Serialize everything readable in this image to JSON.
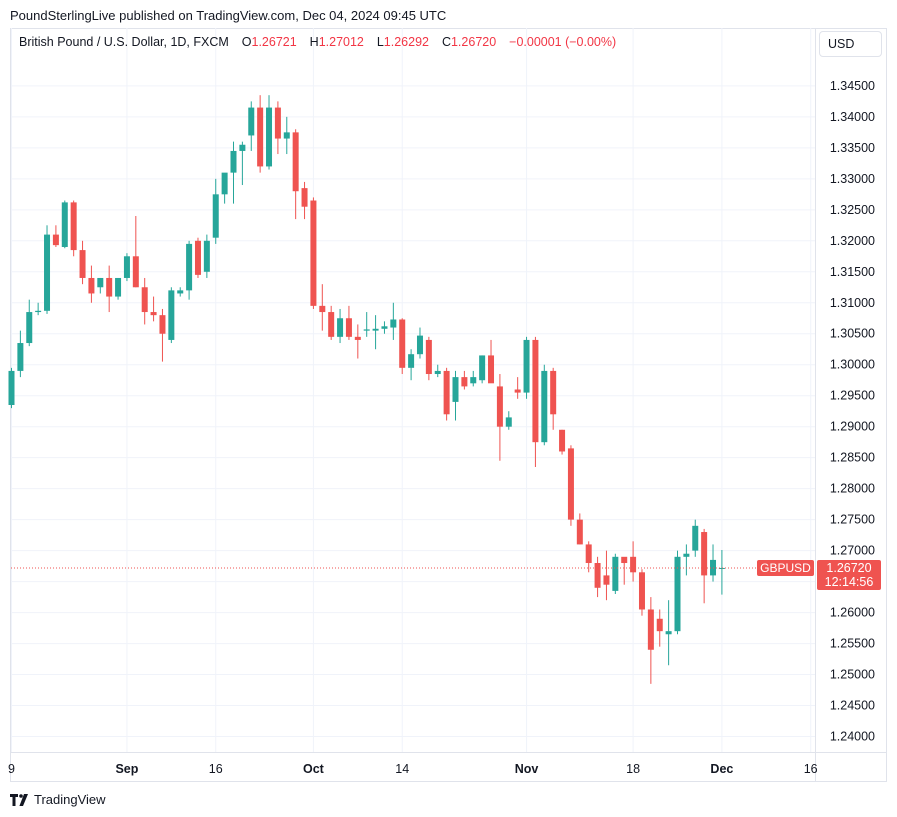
{
  "caption": "PoundSterlingLive published on TradingView.com, Dec 04, 2024 09:45 UTC",
  "legend": {
    "symbol": "British Pound / U.S. Dollar, 1D, FXCM",
    "o_label": "O",
    "o_value": "1.26721",
    "h_label": "H",
    "h_value": "1.27012",
    "l_label": "L",
    "l_value": "1.26292",
    "c_label": "C",
    "c_value": "1.26720",
    "change": "−0.00001 (−0.00%)"
  },
  "currency_button": "USD",
  "price_tag": {
    "symbol": "GBPUSD",
    "price": "1.26720",
    "countdown": "12:14:56"
  },
  "footer": {
    "brand": "TradingView"
  },
  "colors": {
    "up": "#26a69a",
    "down": "#ef5350",
    "grid": "#f0f3fa",
    "tag": "#ef5350"
  },
  "chart_data": {
    "type": "candlestick",
    "ylim": [
      1.2375,
      1.3495
    ],
    "y_ticks": [
      "1.24000",
      "1.24500",
      "1.25000",
      "1.25500",
      "1.26000",
      "1.26500",
      "1.27000",
      "1.27500",
      "1.28000",
      "1.28500",
      "1.29000",
      "1.29500",
      "1.30000",
      "1.30500",
      "1.31000",
      "1.31500",
      "1.32000",
      "1.32500",
      "1.33000",
      "1.33500",
      "1.34000",
      "1.34500"
    ],
    "x_ticks": [
      {
        "label": "9",
        "index": 0
      },
      {
        "label": "Sep",
        "index": 13
      },
      {
        "label": "16",
        "index": 23
      },
      {
        "label": "Oct",
        "index": 34
      },
      {
        "label": "14",
        "index": 44
      },
      {
        "label": "Nov",
        "index": 58
      },
      {
        "label": "18",
        "index": 70
      },
      {
        "label": "Dec",
        "index": 80
      },
      {
        "label": "16",
        "index": 90
      }
    ],
    "last_price": 1.2672,
    "candles": [
      {
        "o": 1.2935,
        "h": 1.2995,
        "l": 1.293,
        "c": 1.299
      },
      {
        "o": 1.299,
        "h": 1.3055,
        "l": 1.298,
        "c": 1.3035
      },
      {
        "o": 1.3035,
        "h": 1.3105,
        "l": 1.303,
        "c": 1.3085
      },
      {
        "o": 1.3085,
        "h": 1.31,
        "l": 1.308,
        "c": 1.3087
      },
      {
        "o": 1.3087,
        "h": 1.3225,
        "l": 1.3082,
        "c": 1.321
      },
      {
        "o": 1.321,
        "h": 1.3225,
        "l": 1.319,
        "c": 1.3193
      },
      {
        "o": 1.319,
        "h": 1.3265,
        "l": 1.3188,
        "c": 1.3262
      },
      {
        "o": 1.3262,
        "h": 1.3265,
        "l": 1.3175,
        "c": 1.3185
      },
      {
        "o": 1.3185,
        "h": 1.32,
        "l": 1.313,
        "c": 1.314
      },
      {
        "o": 1.314,
        "h": 1.316,
        "l": 1.31,
        "c": 1.3115
      },
      {
        "o": 1.3125,
        "h": 1.314,
        "l": 1.3115,
        "c": 1.314
      },
      {
        "o": 1.314,
        "h": 1.316,
        "l": 1.3085,
        "c": 1.311
      },
      {
        "o": 1.311,
        "h": 1.314,
        "l": 1.3105,
        "c": 1.314
      },
      {
        "o": 1.314,
        "h": 1.318,
        "l": 1.3135,
        "c": 1.3175
      },
      {
        "o": 1.3175,
        "h": 1.324,
        "l": 1.3125,
        "c": 1.3125
      },
      {
        "o": 1.3125,
        "h": 1.314,
        "l": 1.3065,
        "c": 1.3085
      },
      {
        "o": 1.3085,
        "h": 1.311,
        "l": 1.307,
        "c": 1.308
      },
      {
        "o": 1.308,
        "h": 1.309,
        "l": 1.3005,
        "c": 1.305
      },
      {
        "o": 1.304,
        "h": 1.3125,
        "l": 1.3035,
        "c": 1.312
      },
      {
        "o": 1.3115,
        "h": 1.3125,
        "l": 1.311,
        "c": 1.312
      },
      {
        "o": 1.312,
        "h": 1.32,
        "l": 1.3105,
        "c": 1.3195
      },
      {
        "o": 1.32,
        "h": 1.3205,
        "l": 1.314,
        "c": 1.3145
      },
      {
        "o": 1.315,
        "h": 1.321,
        "l": 1.314,
        "c": 1.32
      },
      {
        "o": 1.3205,
        "h": 1.33,
        "l": 1.3195,
        "c": 1.3275
      },
      {
        "o": 1.3275,
        "h": 1.3305,
        "l": 1.326,
        "c": 1.331
      },
      {
        "o": 1.331,
        "h": 1.336,
        "l": 1.326,
        "c": 1.3345
      },
      {
        "o": 1.3345,
        "h": 1.336,
        "l": 1.329,
        "c": 1.3355
      },
      {
        "o": 1.337,
        "h": 1.3425,
        "l": 1.3345,
        "c": 1.3415
      },
      {
        "o": 1.3415,
        "h": 1.3435,
        "l": 1.331,
        "c": 1.332
      },
      {
        "o": 1.332,
        "h": 1.3435,
        "l": 1.3315,
        "c": 1.3415
      },
      {
        "o": 1.3415,
        "h": 1.3425,
        "l": 1.334,
        "c": 1.3365
      },
      {
        "o": 1.3365,
        "h": 1.34,
        "l": 1.334,
        "c": 1.3375
      },
      {
        "o": 1.3375,
        "h": 1.338,
        "l": 1.3235,
        "c": 1.328
      },
      {
        "o": 1.3285,
        "h": 1.3295,
        "l": 1.3235,
        "c": 1.3255
      },
      {
        "o": 1.3265,
        "h": 1.327,
        "l": 1.309,
        "c": 1.3095
      },
      {
        "o": 1.3095,
        "h": 1.313,
        "l": 1.3055,
        "c": 1.3085
      },
      {
        "o": 1.3085,
        "h": 1.3095,
        "l": 1.304,
        "c": 1.3045
      },
      {
        "o": 1.3045,
        "h": 1.309,
        "l": 1.3035,
        "c": 1.3075
      },
      {
        "o": 1.3075,
        "h": 1.3095,
        "l": 1.304,
        "c": 1.3045
      },
      {
        "o": 1.3045,
        "h": 1.3065,
        "l": 1.301,
        "c": 1.304
      },
      {
        "o": 1.3055,
        "h": 1.3085,
        "l": 1.3045,
        "c": 1.3057
      },
      {
        "o": 1.3055,
        "h": 1.308,
        "l": 1.3025,
        "c": 1.3058
      },
      {
        "o": 1.3058,
        "h": 1.307,
        "l": 1.305,
        "c": 1.3062
      },
      {
        "o": 1.306,
        "h": 1.31,
        "l": 1.304,
        "c": 1.3073
      },
      {
        "o": 1.3073,
        "h": 1.3075,
        "l": 1.2985,
        "c": 1.2995
      },
      {
        "o": 1.2995,
        "h": 1.3025,
        "l": 1.2975,
        "c": 1.3017
      },
      {
        "o": 1.3017,
        "h": 1.306,
        "l": 1.301,
        "c": 1.3047
      },
      {
        "o": 1.304,
        "h": 1.3045,
        "l": 1.2975,
        "c": 1.2985
      },
      {
        "o": 1.2985,
        "h": 1.3,
        "l": 1.298,
        "c": 1.299
      },
      {
        "o": 1.299,
        "h": 1.2995,
        "l": 1.291,
        "c": 1.292
      },
      {
        "o": 1.294,
        "h": 1.299,
        "l": 1.291,
        "c": 1.298
      },
      {
        "o": 1.298,
        "h": 1.299,
        "l": 1.296,
        "c": 1.2965
      },
      {
        "o": 1.297,
        "h": 1.299,
        "l": 1.2965,
        "c": 1.298
      },
      {
        "o": 1.2975,
        "h": 1.3015,
        "l": 1.297,
        "c": 1.3015
      },
      {
        "o": 1.3015,
        "h": 1.304,
        "l": 1.2975,
        "c": 1.297
      },
      {
        "o": 1.2965,
        "h": 1.2985,
        "l": 1.2845,
        "c": 1.29
      },
      {
        "o": 1.29,
        "h": 1.2925,
        "l": 1.2895,
        "c": 1.2915
      },
      {
        "o": 1.296,
        "h": 1.298,
        "l": 1.2945,
        "c": 1.2955
      },
      {
        "o": 1.2955,
        "h": 1.3045,
        "l": 1.2945,
        "c": 1.304
      },
      {
        "o": 1.304,
        "h": 1.3045,
        "l": 1.2835,
        "c": 1.2875
      },
      {
        "o": 1.2875,
        "h": 1.3,
        "l": 1.287,
        "c": 1.299
      },
      {
        "o": 1.299,
        "h": 1.2995,
        "l": 1.2895,
        "c": 1.292
      },
      {
        "o": 1.2895,
        "h": 1.2895,
        "l": 1.2855,
        "c": 1.286
      },
      {
        "o": 1.2865,
        "h": 1.287,
        "l": 1.274,
        "c": 1.275
      },
      {
        "o": 1.275,
        "h": 1.276,
        "l": 1.271,
        "c": 1.271
      },
      {
        "o": 1.271,
        "h": 1.2715,
        "l": 1.2665,
        "c": 1.268
      },
      {
        "o": 1.268,
        "h": 1.269,
        "l": 1.2625,
        "c": 1.264
      },
      {
        "o": 1.266,
        "h": 1.27,
        "l": 1.262,
        "c": 1.2645
      },
      {
        "o": 1.2635,
        "h": 1.2695,
        "l": 1.263,
        "c": 1.269
      },
      {
        "o": 1.269,
        "h": 1.2685,
        "l": 1.2645,
        "c": 1.268
      },
      {
        "o": 1.269,
        "h": 1.2715,
        "l": 1.265,
        "c": 1.2665
      },
      {
        "o": 1.2665,
        "h": 1.267,
        "l": 1.2595,
        "c": 1.2605
      },
      {
        "o": 1.2605,
        "h": 1.2625,
        "l": 1.2485,
        "c": 1.254
      },
      {
        "o": 1.259,
        "h": 1.2605,
        "l": 1.2545,
        "c": 1.257
      },
      {
        "o": 1.2565,
        "h": 1.262,
        "l": 1.2515,
        "c": 1.257
      },
      {
        "o": 1.257,
        "h": 1.27,
        "l": 1.2565,
        "c": 1.269
      },
      {
        "o": 1.269,
        "h": 1.271,
        "l": 1.266,
        "c": 1.2695
      },
      {
        "o": 1.27,
        "h": 1.275,
        "l": 1.269,
        "c": 1.274
      },
      {
        "o": 1.273,
        "h": 1.2735,
        "l": 1.2615,
        "c": 1.266
      },
      {
        "o": 1.266,
        "h": 1.271,
        "l": 1.265,
        "c": 1.2685
      },
      {
        "o": 1.2672,
        "h": 1.2701,
        "l": 1.2629,
        "c": 1.2672
      }
    ]
  }
}
